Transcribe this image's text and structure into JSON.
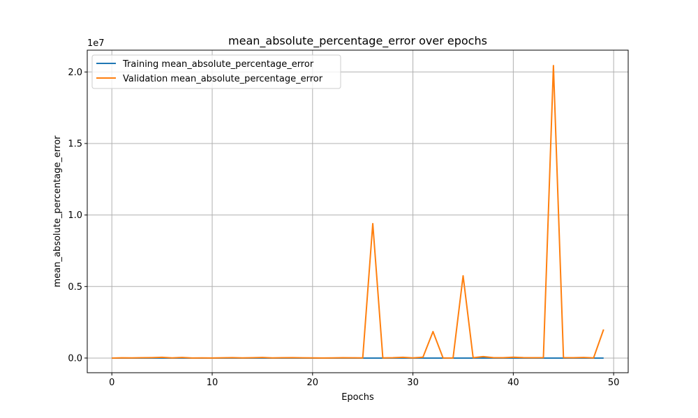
{
  "chart_data": {
    "type": "line",
    "title": "mean_absolute_percentage_error over epochs",
    "xlabel": "Epochs",
    "ylabel": "mean_absolute_percentage_error",
    "y_offset_label": "1e7",
    "xlim": [
      -2.45,
      51.45
    ],
    "ylim": [
      -1025000,
      21525000
    ],
    "x_ticks": [
      0,
      10,
      20,
      30,
      40,
      50
    ],
    "y_ticks": [
      0,
      5000000,
      10000000,
      15000000,
      20000000
    ],
    "y_tick_labels": [
      "0.0",
      "0.5",
      "1.0",
      "1.5",
      "2.0"
    ],
    "grid": true,
    "legend_position": "upper left",
    "x": [
      0,
      1,
      2,
      3,
      4,
      5,
      6,
      7,
      8,
      9,
      10,
      11,
      12,
      13,
      14,
      15,
      16,
      17,
      18,
      19,
      20,
      21,
      22,
      23,
      24,
      25,
      26,
      27,
      28,
      29,
      30,
      31,
      32,
      33,
      34,
      35,
      36,
      37,
      38,
      39,
      40,
      41,
      42,
      43,
      44,
      45,
      46,
      47,
      48,
      49
    ],
    "series": [
      {
        "name": "Training mean_absolute_percentage_error",
        "color": "#1f77b4",
        "values": [
          200,
          180,
          170,
          160,
          150,
          150,
          140,
          140,
          130,
          130,
          120,
          120,
          120,
          110,
          110,
          110,
          100,
          100,
          100,
          100,
          90,
          90,
          90,
          90,
          90,
          80,
          80,
          80,
          80,
          80,
          80,
          70,
          70,
          70,
          70,
          70,
          70,
          70,
          70,
          60,
          60,
          60,
          60,
          60,
          60,
          60,
          60,
          60,
          60,
          60
        ]
      },
      {
        "name": "Validation mean_absolute_percentage_error",
        "color": "#ff7f0e",
        "values": [
          0,
          15000,
          10000,
          20000,
          30000,
          50000,
          10000,
          40000,
          5000,
          10000,
          5000,
          15000,
          30000,
          10000,
          20000,
          40000,
          10000,
          20000,
          30000,
          15000,
          10000,
          5000,
          10000,
          20000,
          15000,
          10000,
          9400000,
          10000,
          20000,
          50000,
          10000,
          60000,
          1850000,
          10000,
          5000,
          5750000,
          20000,
          100000,
          30000,
          20000,
          60000,
          30000,
          20000,
          30000,
          20450000,
          30000,
          20000,
          40000,
          10000,
          2000000
        ]
      }
    ]
  }
}
